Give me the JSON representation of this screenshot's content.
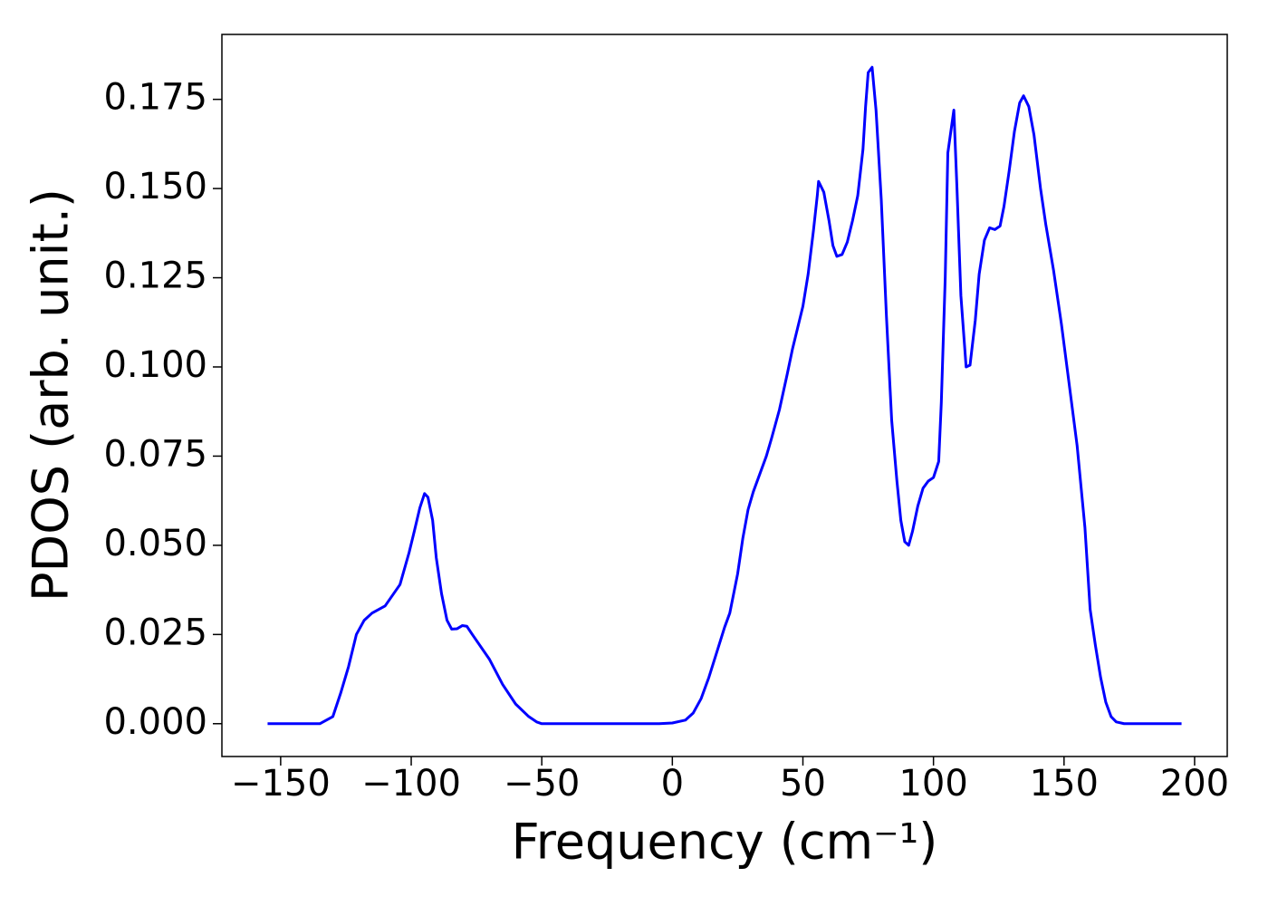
{
  "chart_data": {
    "type": "line",
    "x_label": "Frequency (cm⁻¹)",
    "y_label": "PDOS (arb. unit.)",
    "color": "#0000ff",
    "x": [
      -155,
      -135,
      -130,
      -127,
      -124,
      -121,
      -118,
      -115,
      -110,
      -104.3,
      -100.8,
      -98.8,
      -96.7,
      -94.9,
      -93.6,
      -91.8,
      -90.4,
      -88.4,
      -86.3,
      -84.5,
      -82.5,
      -80.4,
      -78.7,
      -76.6,
      -70,
      -65,
      -60,
      -55,
      -52,
      -50,
      -5,
      0,
      5,
      8,
      11,
      14,
      17,
      20,
      22,
      25,
      27,
      29,
      31,
      33,
      36,
      38,
      41,
      44,
      46,
      48,
      50,
      52,
      54,
      55.5,
      56,
      58,
      60,
      61.5,
      63,
      65,
      67,
      69,
      71,
      73,
      74,
      75,
      76.5,
      78,
      80,
      82,
      84,
      86,
      87.5,
      89,
      90.5,
      92,
      94,
      96,
      98,
      100,
      102,
      103,
      104.5,
      105.5,
      107.8,
      109,
      110.5,
      112.5,
      114,
      116,
      117.5,
      119.5,
      121.5,
      123.5,
      125.5,
      127,
      129,
      131,
      133,
      134.5,
      136.5,
      138.5,
      141,
      143,
      146,
      149,
      152,
      155,
      158,
      160,
      162,
      164,
      166,
      168,
      170,
      173,
      195
    ],
    "values": [
      0,
      0,
      0.002,
      0.0086,
      0.016,
      0.025,
      0.029,
      0.031,
      0.033,
      0.039,
      0.048,
      0.054,
      0.0605,
      0.0645,
      0.0635,
      0.057,
      0.0465,
      0.0365,
      0.029,
      0.0265,
      0.0266,
      0.0275,
      0.0273,
      0.025,
      0.018,
      0.011,
      0.0055,
      0.002,
      0.0005,
      0,
      0,
      0.0002,
      0.001,
      0.003,
      0.007,
      0.013,
      0.02,
      0.027,
      0.031,
      0.042,
      0.052,
      0.06,
      0.065,
      0.069,
      0.075,
      0.08,
      0.088,
      0.098,
      0.105,
      0.111,
      0.117,
      0.126,
      0.138,
      0.148,
      0.152,
      0.149,
      0.141,
      0.134,
      0.131,
      0.1315,
      0.135,
      0.141,
      0.148,
      0.161,
      0.173,
      0.1825,
      0.184,
      0.172,
      0.147,
      0.114,
      0.085,
      0.068,
      0.057,
      0.051,
      0.05,
      0.054,
      0.061,
      0.066,
      0.068,
      0.069,
      0.0735,
      0.09,
      0.125,
      0.16,
      0.172,
      0.15,
      0.12,
      0.1,
      0.1005,
      0.113,
      0.126,
      0.1355,
      0.139,
      0.1385,
      0.1395,
      0.145,
      0.155,
      0.166,
      0.174,
      0.176,
      0.173,
      0.165,
      0.15,
      0.14,
      0.127,
      0.112,
      0.095,
      0.078,
      0.055,
      0.032,
      0.022,
      0.013,
      0.006,
      0.002,
      0.0005,
      0,
      0
    ],
    "xlim": [
      -172.5,
      212.5
    ],
    "ylim": [
      -0.0092,
      0.1932
    ],
    "xticks": [
      {
        "value": -150,
        "label": "−150"
      },
      {
        "value": -100,
        "label": "−100"
      },
      {
        "value": -50,
        "label": "−50"
      },
      0,
      50,
      100,
      150,
      200
    ],
    "yticks": [
      {
        "value": 0,
        "label": "0.000"
      },
      0.025,
      {
        "value": 0.05,
        "label": "0.050"
      },
      0.075,
      {
        "value": 0.1,
        "label": "0.100"
      },
      0.125,
      {
        "value": 0.15,
        "label": "0.150"
      },
      0.175
    ],
    "grid": false
  }
}
